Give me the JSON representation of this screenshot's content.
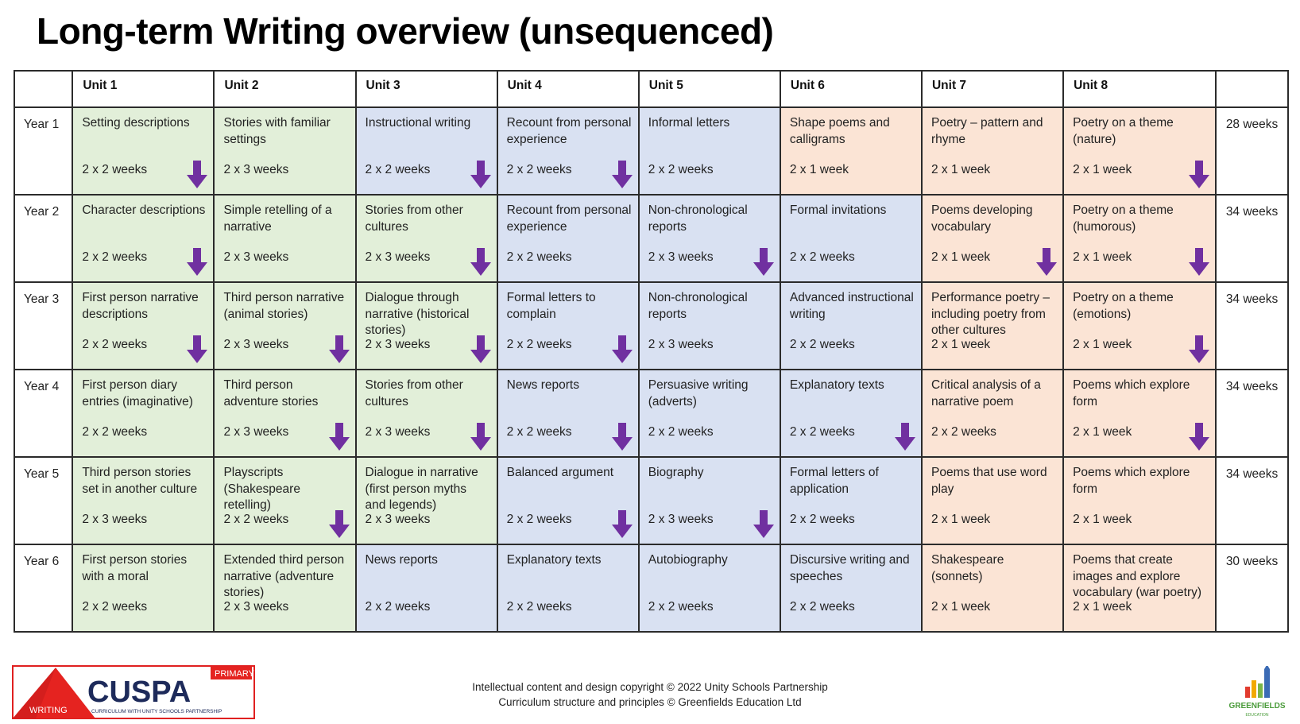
{
  "title": "Long-term Writing overview (unsequenced)",
  "units": [
    "Unit 1",
    "Unit 2",
    "Unit 3",
    "Unit 4",
    "Unit 5",
    "Unit 6",
    "Unit 7",
    "Unit 8"
  ],
  "rows": [
    {
      "year": "Year 1",
      "weeks": "28 weeks",
      "cells": [
        {
          "title": "Setting descriptions",
          "duration": "2 x 2 weeks",
          "arrow": true
        },
        {
          "title": "Stories with familiar settings",
          "duration": "2 x 3 weeks",
          "arrow": false
        },
        {
          "title": "Instructional writing",
          "duration": "2 x 2 weeks",
          "arrow": true
        },
        {
          "title": "Recount from personal experience",
          "duration": "2 x 2 weeks",
          "arrow": true
        },
        {
          "title": "Informal letters",
          "duration": "2 x 2 weeks",
          "arrow": false
        },
        {
          "title": "Shape poems and calligrams",
          "duration": "2 x 1 week",
          "arrow": false
        },
        {
          "title": "Poetry – pattern and rhyme",
          "duration": "2 x 1 week",
          "arrow": false
        },
        {
          "title": "Poetry on a theme (nature)",
          "duration": "2 x 1 week",
          "arrow": true
        }
      ]
    },
    {
      "year": "Year 2",
      "weeks": "34 weeks",
      "cells": [
        {
          "title": "Character descriptions",
          "duration": "2 x 2 weeks",
          "arrow": true
        },
        {
          "title": "Simple retelling of a narrative",
          "duration": "2 x 3 weeks",
          "arrow": false
        },
        {
          "title": "Stories from other cultures",
          "duration": "2 x 3 weeks",
          "arrow": true
        },
        {
          "title": "Recount from personal experience",
          "duration": "2 x 2 weeks",
          "arrow": false
        },
        {
          "title": "Non-chronological reports",
          "duration": "2 x 3 weeks",
          "arrow": true
        },
        {
          "title": "Formal invitations",
          "duration": "2 x 2 weeks",
          "arrow": false
        },
        {
          "title": "Poems developing vocabulary",
          "duration": "2 x 1 week",
          "arrow": true
        },
        {
          "title": "Poetry on a theme (humorous)",
          "duration": "2 x 1 week",
          "arrow": true
        }
      ]
    },
    {
      "year": "Year 3",
      "weeks": "34 weeks",
      "cells": [
        {
          "title": "First person narrative descriptions",
          "duration": "2 x 2 weeks",
          "arrow": true
        },
        {
          "title": "Third person narrative (animal stories)",
          "duration": "2 x 3 weeks",
          "arrow": true
        },
        {
          "title": "Dialogue through narrative (historical stories)",
          "duration": "2 x 3 weeks",
          "arrow": true
        },
        {
          "title": "Formal letters to complain",
          "duration": "2 x 2 weeks",
          "arrow": true
        },
        {
          "title": "Non-chronological reports",
          "duration": "2 x 3 weeks",
          "arrow": false
        },
        {
          "title": "Advanced instructional writing",
          "duration": "2 x 2 weeks",
          "arrow": false
        },
        {
          "title": "Performance poetry – including poetry from other cultures",
          "duration": "2 x 1 week",
          "arrow": false
        },
        {
          "title": "Poetry on a theme (emotions)",
          "duration": "2 x 1 week",
          "arrow": true
        }
      ]
    },
    {
      "year": "Year 4",
      "weeks": "34 weeks",
      "cells": [
        {
          "title": "First person diary entries (imaginative)",
          "duration": "2 x 2 weeks",
          "arrow": false
        },
        {
          "title": "Third person adventure stories",
          "duration": "2 x 3 weeks",
          "arrow": true
        },
        {
          "title": "Stories from other cultures",
          "duration": "2 x 3 weeks",
          "arrow": true
        },
        {
          "title": "News reports",
          "duration": "2 x 2 weeks",
          "arrow": true
        },
        {
          "title": "Persuasive writing (adverts)",
          "duration": "2 x 2 weeks",
          "arrow": false
        },
        {
          "title": "Explanatory texts",
          "duration": "2 x 2 weeks",
          "arrow": true
        },
        {
          "title": "Critical analysis of a narrative poem",
          "duration": "2 x 2 weeks",
          "arrow": false
        },
        {
          "title": "Poems which explore form",
          "duration": "2 x 1 week",
          "arrow": true
        }
      ]
    },
    {
      "year": "Year 5",
      "weeks": "34 weeks",
      "cells": [
        {
          "title": "Third person stories set in another culture",
          "duration": "2 x 3 weeks",
          "arrow": false
        },
        {
          "title": "Playscripts (Shakespeare retelling)",
          "duration": "2 x 2 weeks",
          "arrow": true
        },
        {
          "title": "Dialogue in narrative (first person myths and legends)",
          "duration": "2 x 3 weeks",
          "arrow": false
        },
        {
          "title": "Balanced argument",
          "duration": "2 x 2 weeks",
          "arrow": true
        },
        {
          "title": "Biography",
          "duration": "2 x 3 weeks",
          "arrow": true
        },
        {
          "title": "Formal letters of application",
          "duration": "2 x 2 weeks",
          "arrow": false
        },
        {
          "title": "Poems that use word play",
          "duration": "2 x 1 week",
          "arrow": false
        },
        {
          "title": "Poems which explore form",
          "duration": "2 x 1 week",
          "arrow": false
        }
      ]
    },
    {
      "year": "Year 6",
      "weeks": "30 weeks",
      "cells": [
        {
          "title": "First person stories with a moral",
          "duration": "2 x 2 weeks",
          "arrow": false
        },
        {
          "title": "Extended third person narrative (adventure stories)",
          "duration": "2 x 3 weeks",
          "arrow": false
        },
        {
          "title": "News reports",
          "duration": "2 x 2 weeks",
          "arrow": false
        },
        {
          "title": "Explanatory texts",
          "duration": "2 x 2 weeks",
          "arrow": false
        },
        {
          "title": "Autobiography",
          "duration": "2 x 2 weeks",
          "arrow": false
        },
        {
          "title": "Discursive writing and speeches",
          "duration": "2 x 2 weeks",
          "arrow": false
        },
        {
          "title": "Shakespeare (sonnets)",
          "duration": "2 x 1 week",
          "arrow": false
        },
        {
          "title": "Poems that create images and explore vocabulary (war poetry)",
          "duration": "2 x 1 week",
          "arrow": false
        }
      ]
    }
  ],
  "colors": {
    "green": "#e2efd9",
    "blue": "#d9e1f2",
    "peach": "#fbe4d5",
    "arrow": "#7030a0",
    "border": "#2b2b2b"
  },
  "footer": {
    "line1": "Intellectual content and design copyright © 2022 Unity Schools Partnership",
    "line2": "Curriculum structure and principles © Greenfields Education Ltd"
  },
  "logo": {
    "name": "CUSPA",
    "badge": "PRIMARY",
    "tag": "WRITING",
    "sub": "CURRICULUM WITH UNITY SCHOOLS PARTNERSHIP"
  },
  "greenfields": {
    "name": "GREENFIELDS",
    "sub": "EDUCATION"
  }
}
